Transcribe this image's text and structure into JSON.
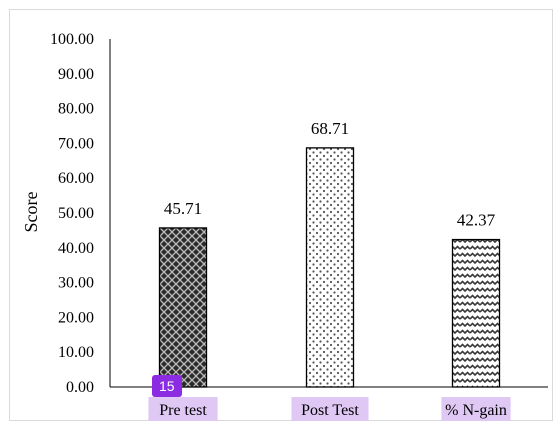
{
  "chart_data": {
    "type": "bar",
    "categories": [
      "Pre test",
      "Post Test",
      "% N-gain"
    ],
    "values": [
      45.71,
      68.71,
      42.37
    ],
    "data_labels": [
      "45.71",
      "68.71",
      "42.37"
    ],
    "ylabel": "Score",
    "ylim": [
      0,
      100
    ],
    "yticks": [
      "0.00",
      "10.00",
      "20.00",
      "30.00",
      "40.00",
      "50.00",
      "60.00",
      "70.00",
      "80.00",
      "90.00",
      "100.00"
    ],
    "patterns": [
      "crosshatch-dark",
      "dots",
      "wave"
    ],
    "grid": false,
    "legend": "none"
  },
  "overlay": {
    "badge": "15"
  },
  "colors": {
    "axis": "#000000",
    "bar_outline": "#000000",
    "category_highlight": "#e0c8f5",
    "badge": "#8b2be2"
  }
}
